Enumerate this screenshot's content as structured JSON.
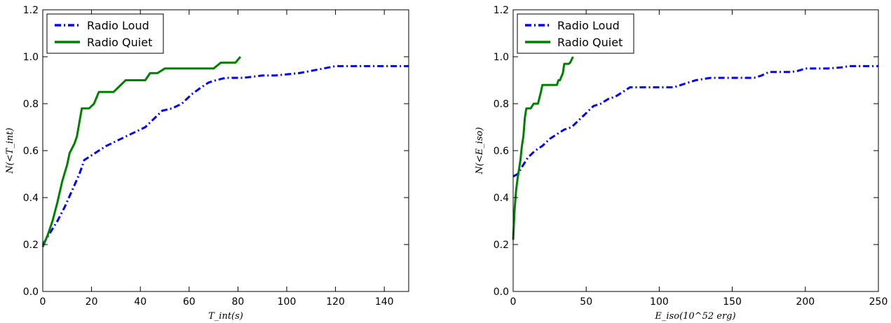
{
  "chart_data": [
    {
      "type": "line",
      "xlabel": "T_int(s)",
      "ylabel": "N(<T_int)",
      "xlim": [
        0,
        150
      ],
      "ylim": [
        0.0,
        1.2
      ],
      "xticks": [
        "0",
        "20",
        "40",
        "60",
        "80",
        "100",
        "120",
        "140"
      ],
      "xtick_values": [
        0,
        20,
        40,
        60,
        80,
        100,
        120,
        140
      ],
      "yticks": [
        "0.0",
        "0.2",
        "0.4",
        "0.6",
        "0.8",
        "1.0",
        "1.2"
      ],
      "ytick_values": [
        0.0,
        0.2,
        0.4,
        0.6,
        0.8,
        1.0,
        1.2
      ],
      "grid": false,
      "legend_position": "top-left",
      "series": [
        {
          "name": "Radio Loud",
          "color": "#0000ff",
          "style": "dash-dot",
          "points": [
            [
              0,
              0.2
            ],
            [
              3,
              0.25
            ],
            [
              6,
              0.3
            ],
            [
              9,
              0.36
            ],
            [
              12,
              0.43
            ],
            [
              15,
              0.5
            ],
            [
              17,
              0.56
            ],
            [
              20,
              0.58
            ],
            [
              23,
              0.6
            ],
            [
              26,
              0.62
            ],
            [
              30,
              0.64
            ],
            [
              34,
              0.66
            ],
            [
              38,
              0.68
            ],
            [
              42,
              0.7
            ],
            [
              46,
              0.74
            ],
            [
              49,
              0.77
            ],
            [
              53,
              0.78
            ],
            [
              57,
              0.8
            ],
            [
              61,
              0.84
            ],
            [
              65,
              0.87
            ],
            [
              68,
              0.89
            ],
            [
              71,
              0.9
            ],
            [
              75,
              0.91
            ],
            [
              78,
              0.91
            ],
            [
              82,
              0.91
            ],
            [
              86,
              0.915
            ],
            [
              90,
              0.92
            ],
            [
              95,
              0.92
            ],
            [
              100,
              0.925
            ],
            [
              105,
              0.93
            ],
            [
              110,
              0.94
            ],
            [
              115,
              0.95
            ],
            [
              120,
              0.96
            ],
            [
              125,
              0.96
            ],
            [
              130,
              0.96
            ],
            [
              135,
              0.96
            ],
            [
              140,
              0.96
            ],
            [
              145,
              0.96
            ],
            [
              150,
              0.96
            ]
          ]
        },
        {
          "name": "Radio Quiet",
          "color": "#008000",
          "style": "solid",
          "points": [
            [
              0,
              0.19
            ],
            [
              2,
              0.24
            ],
            [
              4,
              0.3
            ],
            [
              6,
              0.38
            ],
            [
              8,
              0.47
            ],
            [
              10,
              0.54
            ],
            [
              11,
              0.59
            ],
            [
              13,
              0.63
            ],
            [
              14,
              0.66
            ],
            [
              15,
              0.72
            ],
            [
              16,
              0.78
            ],
            [
              19,
              0.78
            ],
            [
              21,
              0.8
            ],
            [
              23,
              0.85
            ],
            [
              29,
              0.85
            ],
            [
              34,
              0.9
            ],
            [
              39,
              0.9
            ],
            [
              42,
              0.9
            ],
            [
              44,
              0.93
            ],
            [
              47,
              0.93
            ],
            [
              50,
              0.95
            ],
            [
              70,
              0.95
            ],
            [
              73,
              0.975
            ],
            [
              79,
              0.975
            ],
            [
              81,
              1.0
            ]
          ]
        }
      ]
    },
    {
      "type": "line",
      "xlabel": "E_iso(10^52 erg)",
      "ylabel": "N(<E_iso)",
      "xlim": [
        0,
        250
      ],
      "ylim": [
        0.0,
        1.2
      ],
      "xticks": [
        "0",
        "50",
        "100",
        "150",
        "200",
        "250"
      ],
      "xtick_values": [
        0,
        50,
        100,
        150,
        200,
        250
      ],
      "yticks": [
        "0.0",
        "0.2",
        "0.4",
        "0.6",
        "0.8",
        "1.0",
        "1.2"
      ],
      "ytick_values": [
        0.0,
        0.2,
        0.4,
        0.6,
        0.8,
        1.0,
        1.2
      ],
      "grid": false,
      "legend_position": "top-left",
      "series": [
        {
          "name": "Radio Loud",
          "color": "#0000ff",
          "style": "dash-dot",
          "points": [
            [
              0,
              0.49
            ],
            [
              3,
              0.5
            ],
            [
              6,
              0.53
            ],
            [
              10,
              0.57
            ],
            [
              15,
              0.6
            ],
            [
              20,
              0.62
            ],
            [
              25,
              0.65
            ],
            [
              30,
              0.67
            ],
            [
              35,
              0.69
            ],
            [
              40,
              0.7
            ],
            [
              45,
              0.73
            ],
            [
              50,
              0.76
            ],
            [
              55,
              0.79
            ],
            [
              60,
              0.8
            ],
            [
              65,
              0.82
            ],
            [
              70,
              0.83
            ],
            [
              75,
              0.85
            ],
            [
              80,
              0.87
            ],
            [
              90,
              0.87
            ],
            [
              100,
              0.87
            ],
            [
              110,
              0.87
            ],
            [
              115,
              0.88
            ],
            [
              120,
              0.89
            ],
            [
              125,
              0.9
            ],
            [
              130,
              0.905
            ],
            [
              135,
              0.91
            ],
            [
              150,
              0.91
            ],
            [
              165,
              0.91
            ],
            [
              170,
              0.92
            ],
            [
              175,
              0.935
            ],
            [
              190,
              0.935
            ],
            [
              195,
              0.94
            ],
            [
              200,
              0.95
            ],
            [
              215,
              0.95
            ],
            [
              225,
              0.955
            ],
            [
              230,
              0.96
            ],
            [
              240,
              0.96
            ],
            [
              250,
              0.96
            ]
          ]
        },
        {
          "name": "Radio Quiet",
          "color": "#008000",
          "style": "solid",
          "points": [
            [
              0,
              0.22
            ],
            [
              1,
              0.35
            ],
            [
              2,
              0.43
            ],
            [
              3,
              0.48
            ],
            [
              5,
              0.56
            ],
            [
              6,
              0.62
            ],
            [
              7,
              0.66
            ],
            [
              8,
              0.74
            ],
            [
              9,
              0.78
            ],
            [
              12,
              0.78
            ],
            [
              14,
              0.8
            ],
            [
              17,
              0.8
            ],
            [
              19,
              0.85
            ],
            [
              20,
              0.88
            ],
            [
              28,
              0.88
            ],
            [
              30,
              0.88
            ],
            [
              31,
              0.9
            ],
            [
              32,
              0.9
            ],
            [
              34,
              0.93
            ],
            [
              35,
              0.97
            ],
            [
              38,
              0.97
            ],
            [
              39,
              0.975
            ],
            [
              41,
              1.0
            ]
          ]
        }
      ]
    }
  ]
}
